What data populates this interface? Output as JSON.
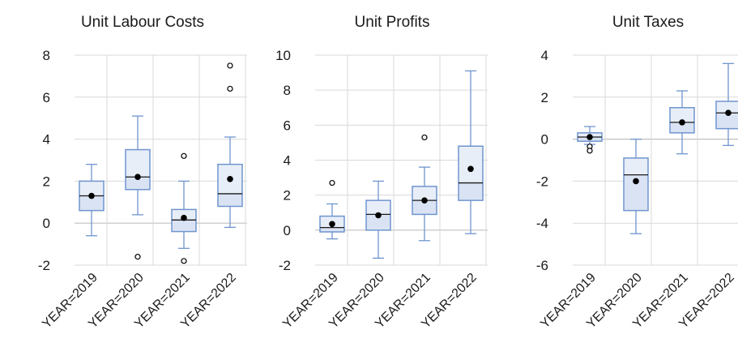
{
  "chart_data": [
    {
      "type": "boxplot",
      "title": "Unit Labour Costs",
      "categories": [
        "YEAR=2019",
        "YEAR=2020",
        "YEAR=2021",
        "YEAR=2022"
      ],
      "ylim": [
        -2,
        8
      ],
      "yticks": [
        "-2",
        "0",
        "2",
        "4",
        "6",
        "8"
      ],
      "boxes": [
        {
          "min": -0.6,
          "q1": 0.6,
          "median": 1.3,
          "q3": 2.0,
          "max": 2.8,
          "mean": 1.3,
          "outliers": []
        },
        {
          "min": 0.4,
          "q1": 1.6,
          "median": 2.2,
          "q3": 3.5,
          "max": 5.1,
          "mean": 2.2,
          "outliers": [
            -1.6
          ]
        },
        {
          "min": -1.2,
          "q1": -0.4,
          "median": 0.15,
          "q3": 0.65,
          "max": 2.0,
          "mean": 0.25,
          "outliers": [
            3.2,
            -1.8
          ]
        },
        {
          "min": -0.2,
          "q1": 0.8,
          "median": 1.4,
          "q3": 2.8,
          "max": 4.1,
          "mean": 2.1,
          "outliers": [
            6.4,
            7.5
          ]
        }
      ]
    },
    {
      "type": "boxplot",
      "title": "Unit Profits",
      "categories": [
        "YEAR=2019",
        "YEAR=2020",
        "YEAR=2021",
        "YEAR=2022"
      ],
      "ylim": [
        -2,
        10
      ],
      "yticks": [
        "-2",
        "0",
        "2",
        "4",
        "6",
        "8",
        "10"
      ],
      "boxes": [
        {
          "min": -0.5,
          "q1": -0.1,
          "median": 0.15,
          "q3": 0.8,
          "max": 1.5,
          "mean": 0.35,
          "outliers": [
            2.7
          ]
        },
        {
          "min": -1.6,
          "q1": 0.0,
          "median": 0.9,
          "q3": 1.7,
          "max": 2.8,
          "mean": 0.85,
          "outliers": []
        },
        {
          "min": -0.6,
          "q1": 0.9,
          "median": 1.7,
          "q3": 2.5,
          "max": 3.6,
          "mean": 1.7,
          "outliers": [
            5.3
          ]
        },
        {
          "min": -0.2,
          "q1": 1.7,
          "median": 2.7,
          "q3": 4.8,
          "max": 9.1,
          "mean": 3.5,
          "outliers": []
        }
      ]
    },
    {
      "type": "boxplot",
      "title": "Unit Taxes",
      "categories": [
        "YEAR=2019",
        "YEAR=2020",
        "YEAR=2021",
        "YEAR=2022"
      ],
      "ylim": [
        -6,
        4
      ],
      "yticks": [
        "-6",
        "-4",
        "-2",
        "0",
        "2",
        "4"
      ],
      "boxes": [
        {
          "min": -0.25,
          "q1": -0.1,
          "median": 0.1,
          "q3": 0.3,
          "max": 0.6,
          "mean": 0.1,
          "outliers": [
            -0.35,
            -0.55
          ]
        },
        {
          "min": -4.5,
          "q1": -3.4,
          "median": -1.7,
          "q3": -0.9,
          "max": 0.0,
          "mean": -2.0,
          "outliers": []
        },
        {
          "min": -0.7,
          "q1": 0.3,
          "median": 0.8,
          "q3": 1.5,
          "max": 2.3,
          "mean": 0.8,
          "outliers": []
        },
        {
          "min": -0.3,
          "q1": 0.5,
          "median": 1.25,
          "q3": 1.8,
          "max": 3.6,
          "mean": 1.25,
          "outliers": []
        }
      ]
    }
  ],
  "colors": {
    "box_fill": "#dae3f3",
    "box_fill_upper": "#e8eef8",
    "box_border": "#6f95cf",
    "median": "#1a1a1a",
    "mean": "#000000",
    "grid": "#d9d9d9"
  }
}
